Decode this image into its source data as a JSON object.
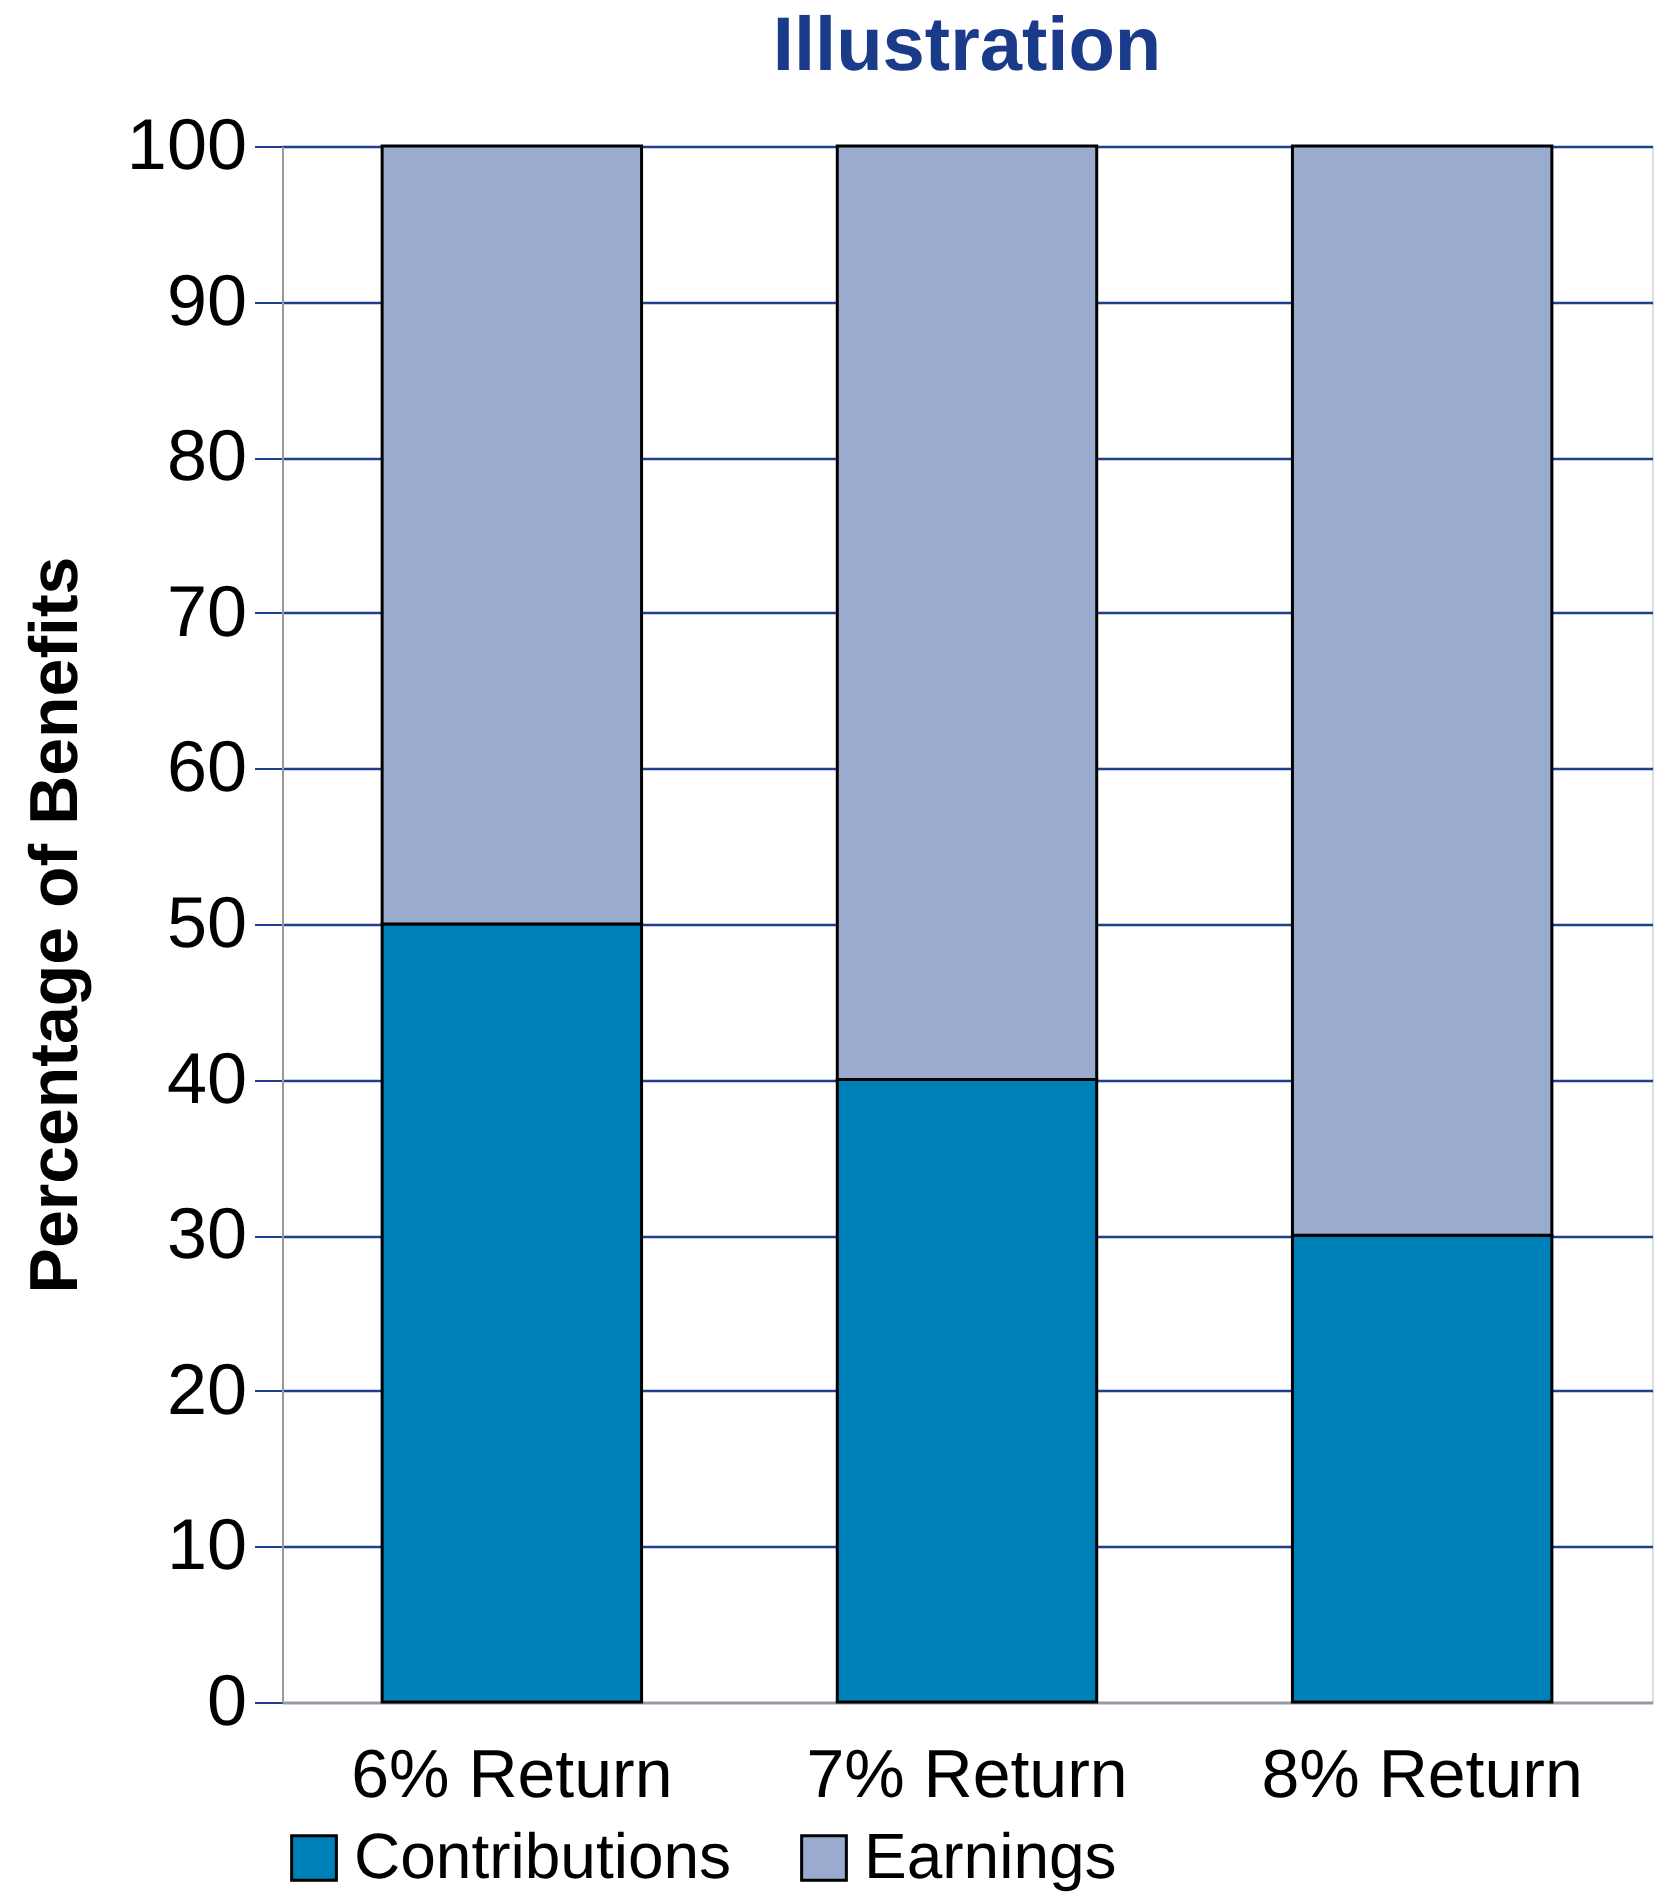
{
  "chart_data": {
    "type": "bar",
    "title": "Illustration",
    "ylabel": "Percentage of Benefits",
    "categories": [
      "6% Return",
      "7% Return",
      "8% Return"
    ],
    "stacked": true,
    "series": [
      {
        "name": "Contributions",
        "color": "#0080b8",
        "values": [
          50,
          40,
          30
        ]
      },
      {
        "name": "Earnings",
        "color": "#9aabd0",
        "values": [
          50,
          60,
          70
        ]
      }
    ],
    "ylim": [
      0,
      100
    ],
    "yticks": [
      0,
      10,
      20,
      30,
      40,
      50,
      60,
      70,
      80,
      90,
      100
    ],
    "grid": "y",
    "legend": "bottom"
  }
}
